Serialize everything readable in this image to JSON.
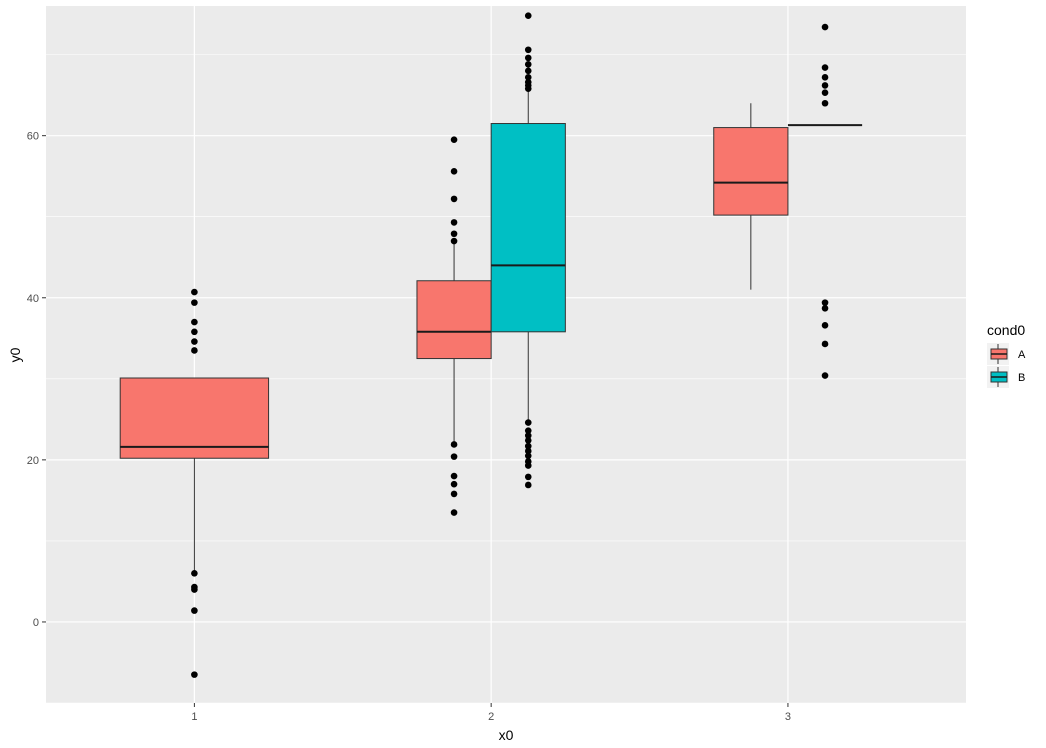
{
  "chart_data": {
    "type": "boxplot",
    "xlabel": "x0",
    "ylabel": "y0",
    "categories": [
      "1",
      "2",
      "3"
    ],
    "x_range": [
      0.5,
      3.6
    ],
    "y_range": [
      -10,
      76
    ],
    "y_ticks": [
      0,
      20,
      40,
      60
    ],
    "grid": true,
    "legend": {
      "title": "cond0",
      "placement": "right",
      "entries": [
        {
          "label": "A",
          "color": "#F8766D"
        },
        {
          "label": "B",
          "color": "#00BFC4"
        }
      ]
    },
    "series": [
      {
        "name": "A",
        "color": "#F8766D",
        "boxes": [
          {
            "x": "1",
            "q1": 20.2,
            "median": 21.6,
            "q3": 30.1,
            "whisker_low": 6.0,
            "whisker_high": 30.1,
            "outliers": [
              40.7,
              39.4,
              37.0,
              35.8,
              34.6,
              33.5,
              6.0,
              4.3,
              4.0,
              1.4,
              -6.5
            ]
          },
          {
            "x": "2",
            "q1": 32.5,
            "median": 35.8,
            "q3": 42.1,
            "whisker_low": 21.9,
            "whisker_high": 47.0,
            "outliers": [
              59.5,
              55.6,
              52.2,
              49.3,
              47.9,
              47.0,
              21.9,
              20.4,
              18.0,
              17.0,
              15.8,
              13.5
            ]
          },
          {
            "x": "3",
            "q1": 50.2,
            "median": 54.2,
            "q3": 61.0,
            "whisker_low": 41.0,
            "whisker_high": 64.0,
            "outliers": []
          }
        ]
      },
      {
        "name": "B",
        "color": "#00BFC4",
        "boxes": [
          {
            "x": "2",
            "q1": 35.8,
            "median": 44.0,
            "q3": 61.5,
            "whisker_low": 24.6,
            "whisker_high": 65.8,
            "outliers": [
              74.8,
              70.6,
              69.6,
              68.8,
              68.0,
              67.2,
              66.6,
              66.2,
              65.8,
              24.6,
              23.6,
              23.0,
              22.4,
              21.7,
              21.1,
              20.5,
              19.8,
              19.3,
              17.9,
              16.9
            ]
          },
          {
            "x": "3",
            "q1": 61.3,
            "median": 61.3,
            "q3": 61.3,
            "whisker_low": 61.3,
            "whisker_high": 61.3,
            "outliers": [
              73.4,
              68.4,
              67.2,
              66.2,
              65.3,
              64.0,
              39.4,
              38.7,
              36.6,
              34.3,
              30.4
            ]
          }
        ]
      }
    ]
  }
}
